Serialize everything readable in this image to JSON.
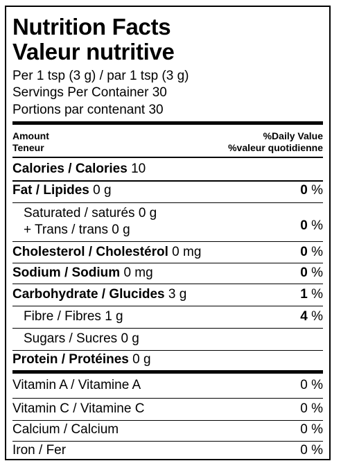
{
  "title": {
    "en": "Nutrition Facts",
    "fr": "Valeur nutritive"
  },
  "serving": {
    "size": "Per 1 tsp (3 g) / par 1 tsp (3 g)",
    "servings_en": "Servings Per Container 30",
    "servings_fr": "Portions par contenant 30"
  },
  "header": {
    "amount_en": "Amount",
    "amount_fr": "Teneur",
    "dv_en": "%Daily Value",
    "dv_fr": "%valeur quotidienne"
  },
  "calories": {
    "label": "Calories / Calories",
    "value": "10"
  },
  "fat": {
    "label": "Fat / Lipides",
    "value": "0 g",
    "dv": "0"
  },
  "saturated": {
    "label": "Saturated / saturés",
    "value": "0 g"
  },
  "trans": {
    "label": "+ Trans / trans",
    "value": "0 g",
    "dv": "0"
  },
  "cholesterol": {
    "label": "Cholesterol / Cholestérol",
    "value": "0 mg",
    "dv": "0"
  },
  "sodium": {
    "label": "Sodium / Sodium",
    "value": "0 mg",
    "dv": "0"
  },
  "carbohydrate": {
    "label": "Carbohydrate / Glucides",
    "value": "3 g",
    "dv": "1"
  },
  "fibre": {
    "label": "Fibre / Fibres",
    "value": "1 g",
    "dv": "4"
  },
  "sugars": {
    "label": "Sugars / Sucres",
    "value": "0 g"
  },
  "protein": {
    "label": "Protein / Protéines",
    "value": "0 g"
  },
  "percent_sign": "%",
  "vitamins": [
    {
      "label": "Vitamin A / Vitamine A",
      "dv": "0 %"
    },
    {
      "label": "Vitamin C / Vitamine C",
      "dv": "0 %"
    },
    {
      "label": "Calcium / Calcium",
      "dv": "0 %"
    },
    {
      "label": "Iron / Fer",
      "dv": "0 %"
    }
  ]
}
